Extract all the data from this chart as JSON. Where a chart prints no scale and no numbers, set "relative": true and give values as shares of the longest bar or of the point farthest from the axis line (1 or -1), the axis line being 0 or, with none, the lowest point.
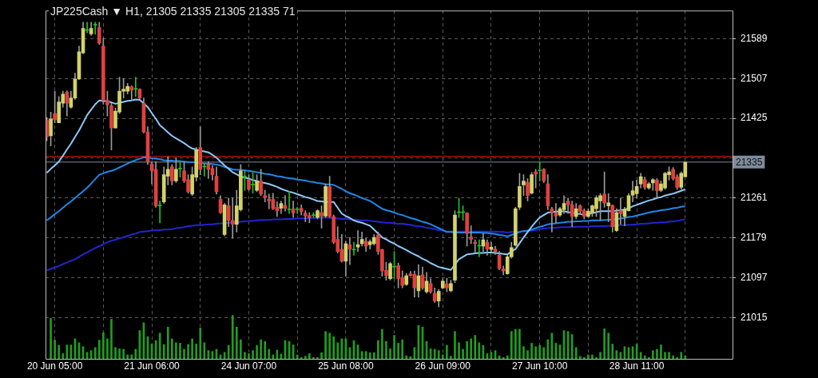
{
  "chart_data": [
    {
      "type": "candlestick",
      "title": "JP225Cash ▼ H1, 21305 21335 21305 21335 71",
      "categories": [
        null,
        null,
        "20 Jun 05:00",
        null,
        null,
        null,
        null,
        null,
        null,
        null,
        null,
        null,
        null,
        null,
        null,
        null,
        null,
        null,
        null,
        null,
        null,
        null,
        null,
        null,
        null,
        null,
        "21 Jun 06:00",
        null,
        null,
        null,
        null,
        null,
        null,
        null,
        null,
        null,
        null,
        null,
        null,
        null,
        null,
        null,
        null,
        null,
        null,
        null,
        null,
        null,
        null,
        null,
        "24 Jun 07:00",
        null,
        null,
        null,
        null,
        null,
        null,
        null,
        null,
        null,
        null,
        null,
        null,
        null,
        null,
        null,
        null,
        null,
        null,
        null,
        null,
        null,
        null,
        null,
        "25 Jun 08:00",
        null,
        null,
        null,
        null,
        null,
        null,
        null,
        null,
        null,
        null,
        null,
        null,
        null,
        null,
        null,
        null,
        null,
        null,
        null,
        null,
        null,
        null,
        null,
        "26 Jun 09:00",
        null,
        null,
        null,
        null,
        null,
        null,
        null,
        null,
        null,
        null,
        null,
        null,
        null,
        null,
        null,
        null,
        null,
        null,
        null,
        null,
        null,
        null,
        null,
        "27 Jun 10:00",
        null,
        null,
        null,
        null,
        null,
        null,
        null,
        null,
        null,
        null,
        null,
        null,
        null,
        null,
        null,
        null,
        null,
        null,
        null,
        null,
        null,
        null,
        null,
        "28 Jun 11:00",
        null,
        null,
        null,
        null,
        null,
        null,
        null,
        null,
        null,
        null,
        null,
        null
      ],
      "ohlc": [
        [
          21422,
          21427,
          21379,
          21387
        ],
        [
          21389,
          21438,
          21368,
          21424
        ],
        [
          21435,
          21481,
          21416,
          21422
        ],
        [
          21416,
          21470,
          21416,
          21459
        ],
        [
          21456,
          21481,
          21448,
          21475
        ],
        [
          21479,
          21482,
          21430,
          21456
        ],
        [
          21448,
          21481,
          21446,
          21467
        ],
        [
          21467,
          21518,
          21464,
          21506
        ],
        [
          21506,
          21574,
          21505,
          21562
        ],
        [
          21560,
          21623,
          21558,
          21610
        ],
        [
          21606,
          21623,
          21601,
          21606
        ],
        [
          21599,
          21623,
          21596,
          21610
        ],
        [
          21617,
          21623,
          21598,
          21617
        ],
        [
          21612,
          21623,
          21577,
          21580
        ],
        [
          21574,
          21590,
          21454,
          21462
        ],
        [
          21462,
          21481,
          21430,
          21453
        ],
        [
          21451,
          21456,
          21360,
          21405
        ],
        [
          21405,
          21446,
          21405,
          21440
        ],
        [
          21438,
          21510,
          21435,
          21481
        ],
        [
          21481,
          21507,
          21467,
          21485
        ],
        [
          21481,
          21497,
          21475,
          21491
        ],
        [
          21490,
          21492,
          21464,
          21483
        ],
        [
          21485,
          21510,
          21470,
          21485
        ],
        [
          21485,
          21486,
          21464,
          21467
        ],
        [
          21456,
          21467,
          21395,
          21397
        ],
        [
          21397,
          21408,
          21330,
          21336
        ],
        [
          21331,
          21336,
          21290,
          21317
        ],
        [
          21320,
          21336,
          21242,
          21245
        ],
        [
          21245,
          21255,
          21210,
          21245
        ],
        [
          21253,
          21325,
          21250,
          21309
        ],
        [
          21306,
          21346,
          21288,
          21320
        ],
        [
          21325,
          21330,
          21288,
          21296
        ],
        [
          21296,
          21344,
          21293,
          21320
        ],
        [
          21321,
          21336,
          21304,
          21321
        ],
        [
          21317,
          21336,
          21293,
          21296
        ],
        [
          21299,
          21309,
          21271,
          21274
        ],
        [
          21269,
          21325,
          21266,
          21309
        ],
        [
          21304,
          21365,
          21296,
          21360
        ],
        [
          21365,
          21408,
          21309,
          21320
        ],
        [
          21325,
          21333,
          21306,
          21325
        ],
        [
          21330,
          21336,
          21301,
          21320
        ],
        [
          21322,
          21328,
          21298,
          21309
        ],
        [
          21306,
          21325,
          21269,
          21274
        ],
        [
          21258,
          21266,
          21229,
          21231
        ],
        [
          21186,
          21250,
          21183,
          21247
        ],
        [
          21245,
          21261,
          21202,
          21215
        ],
        [
          21215,
          21261,
          21178,
          21207
        ],
        [
          21207,
          21277,
          21191,
          21245
        ],
        [
          21237,
          21330,
          21234,
          21317
        ],
        [
          21304,
          21317,
          21277,
          21304
        ],
        [
          21299,
          21309,
          21277,
          21279
        ],
        [
          21288,
          21314,
          21271,
          21288
        ],
        [
          21277,
          21309,
          21274,
          21296
        ],
        [
          21296,
          21320,
          21266,
          21269
        ],
        [
          21266,
          21277,
          21253,
          21262
        ],
        [
          21259,
          21269,
          21239,
          21255
        ],
        [
          21258,
          21271,
          21237,
          21239
        ],
        [
          21242,
          21253,
          21223,
          21235
        ],
        [
          21240,
          21255,
          21229,
          21250
        ],
        [
          21246,
          21266,
          21234,
          21240
        ],
        [
          21237,
          21274,
          21229,
          21237
        ],
        [
          21239,
          21255,
          21221,
          21230
        ],
        [
          21237,
          21242,
          21229,
          21237
        ],
        [
          21240,
          21247,
          21226,
          21233
        ],
        [
          21230,
          21235,
          21212,
          21224
        ],
        [
          21225,
          21231,
          21210,
          21221
        ],
        [
          21225,
          21231,
          21221,
          21225
        ],
        [
          21221,
          21237,
          21218,
          21235
        ],
        [
          21231,
          21245,
          21199,
          21224
        ],
        [
          21224,
          21290,
          21221,
          21285
        ],
        [
          21285,
          21306,
          21221,
          21223
        ],
        [
          21223,
          21226,
          21167,
          21170
        ],
        [
          21176,
          21202,
          21148,
          21151
        ],
        [
          21155,
          21186,
          21129,
          21131
        ],
        [
          21131,
          21172,
          21100,
          21167
        ],
        [
          21165,
          21180,
          21124,
          21156
        ],
        [
          21154,
          21170,
          21143,
          21154
        ],
        [
          21160,
          21194,
          21151,
          21165
        ],
        [
          21167,
          21191,
          21162,
          21176
        ],
        [
          21172,
          21178,
          21151,
          21162
        ],
        [
          21165,
          21175,
          21156,
          21171
        ],
        [
          21167,
          21186,
          21164,
          21180
        ],
        [
          21185,
          21191,
          21145,
          21151
        ],
        [
          21155,
          21156,
          21100,
          21111
        ],
        [
          21112,
          21129,
          21092,
          21101
        ],
        [
          21095,
          21129,
          21092,
          21126
        ],
        [
          21119,
          21151,
          21095,
          21119
        ],
        [
          21122,
          21127,
          21076,
          21095
        ],
        [
          21097,
          21111,
          21076,
          21081
        ],
        [
          21083,
          21106,
          21081,
          21101
        ],
        [
          21105,
          21110,
          21100,
          21101
        ],
        [
          21104,
          21111,
          21057,
          21076
        ],
        [
          21070,
          21124,
          21057,
          21101
        ],
        [
          21103,
          21119,
          21073,
          21076
        ],
        [
          21068,
          21108,
          21065,
          21090
        ],
        [
          21085,
          21095,
          21065,
          21068
        ],
        [
          21065,
          21076,
          21046,
          21049
        ],
        [
          21049,
          21073,
          21037,
          21069
        ],
        [
          21076,
          21095,
          21074,
          21090
        ],
        [
          21084,
          21096,
          21068,
          21076
        ],
        [
          21070,
          21092,
          21068,
          21085
        ],
        [
          21092,
          21235,
          21087,
          21226
        ],
        [
          21231,
          21261,
          21221,
          21231
        ],
        [
          21231,
          21245,
          21215,
          21231
        ],
        [
          21230,
          21231,
          21162,
          21188
        ],
        [
          21181,
          21204,
          21167,
          21176
        ],
        [
          21170,
          21175,
          21148,
          21167
        ],
        [
          21162,
          21175,
          21140,
          21162
        ],
        [
          21162,
          21188,
          21151,
          21175
        ],
        [
          21170,
          21175,
          21143,
          21156
        ],
        [
          21155,
          21170,
          21151,
          21160
        ],
        [
          21156,
          21162,
          21145,
          21151
        ],
        [
          21144,
          21151,
          21113,
          21116
        ],
        [
          21115,
          21121,
          21103,
          21111
        ],
        [
          21105,
          21143,
          21104,
          21140
        ],
        [
          21140,
          21170,
          21137,
          21159
        ],
        [
          21164,
          21242,
          21162,
          21239
        ],
        [
          21242,
          21312,
          21237,
          21285
        ],
        [
          21288,
          21309,
          21266,
          21296
        ],
        [
          21293,
          21301,
          21255,
          21266
        ],
        [
          21271,
          21314,
          21269,
          21309
        ],
        [
          21315,
          21320,
          21282,
          21310
        ],
        [
          21317,
          21336,
          21296,
          21317
        ],
        [
          21320,
          21322,
          21293,
          21296
        ],
        [
          21290,
          21309,
          21237,
          21245
        ],
        [
          21239,
          21242,
          21191,
          21231
        ],
        [
          21230,
          21250,
          21210,
          21224
        ],
        [
          21226,
          21242,
          21223,
          21239
        ],
        [
          21237,
          21266,
          21229,
          21250
        ],
        [
          21255,
          21261,
          21229,
          21247
        ],
        [
          21247,
          21255,
          21202,
          21223
        ],
        [
          21223,
          21250,
          21218,
          21239
        ],
        [
          21245,
          21247,
          21229,
          21234
        ],
        [
          21235,
          21239,
          21218,
          21223
        ],
        [
          21223,
          21239,
          21221,
          21234
        ],
        [
          21231,
          21247,
          21223,
          21245
        ],
        [
          21239,
          21266,
          21223,
          21262
        ],
        [
          21255,
          21270,
          21215,
          21266
        ],
        [
          21269,
          21315,
          21242,
          21251
        ],
        [
          21245,
          21270,
          21212,
          21251
        ],
        [
          21246,
          21247,
          21191,
          21202
        ],
        [
          21194,
          21239,
          21192,
          21231
        ],
        [
          21235,
          21261,
          21207,
          21229
        ],
        [
          21223,
          21242,
          21204,
          21238
        ],
        [
          21235,
          21270,
          21234,
          21266
        ],
        [
          21267,
          21296,
          21253,
          21276
        ],
        [
          21270,
          21298,
          21261,
          21285
        ],
        [
          21290,
          21312,
          21282,
          21305
        ],
        [
          21299,
          21304,
          21279,
          21283
        ],
        [
          21282,
          21293,
          21279,
          21290
        ],
        [
          21292,
          21301,
          21277,
          21299
        ],
        [
          21298,
          21301,
          21261,
          21276
        ],
        [
          21277,
          21296,
          21274,
          21290
        ],
        [
          21282,
          21314,
          21279,
          21312
        ],
        [
          21309,
          21325,
          21298,
          21315
        ],
        [
          21320,
          21324,
          21298,
          21301
        ],
        [
          21305,
          21309,
          21279,
          21283
        ],
        [
          21283,
          21315,
          21279,
          21312
        ],
        [
          21305,
          21335,
          21305,
          21335
        ]
      ],
      "series": [
        {
          "type": "line",
          "color": "#8ec8f8",
          "values": [
            21313,
            21321,
            21328,
            21336,
            21348,
            21361,
            21373,
            21387,
            21400,
            21416,
            21432,
            21443,
            21454,
            21462,
            21461,
            21460,
            21458,
            21455,
            21457,
            21459,
            21461,
            21462,
            21464,
            21463,
            21456,
            21448,
            21436,
            21424,
            21411,
            21404,
            21396,
            21389,
            21384,
            21379,
            21374,
            21368,
            21363,
            21361,
            21358,
            21357,
            21355,
            21350,
            21344,
            21336,
            21328,
            21321,
            21314,
            21310,
            21305,
            21303,
            21301,
            21298,
            21296,
            21293,
            21292,
            21290,
            21287,
            21284,
            21280,
            21277,
            21274,
            21272,
            21269,
            21266,
            21263,
            21261,
            21258,
            21255,
            21254,
            21253,
            21253,
            21253,
            21241,
            21229,
            21224,
            21220,
            21215,
            21212,
            21210,
            21207,
            21204,
            21196,
            21188,
            21180,
            21176,
            21171,
            21167,
            21162,
            21158,
            21154,
            21149,
            21145,
            21141,
            21136,
            21132,
            21127,
            21123,
            21119,
            21117,
            21115,
            21113,
            21124,
            21135,
            21140,
            21145,
            21146,
            21147,
            21148,
            21148,
            21149,
            21149,
            21148,
            21147,
            21146,
            21145,
            21151,
            21156,
            21168,
            21180,
            21191,
            21202,
            21212,
            21221,
            21226,
            21231,
            21232,
            21233,
            21233,
            21234,
            21232,
            21231,
            21229,
            21228,
            21226,
            21228,
            21230,
            21232,
            21234,
            21234,
            21234,
            21234,
            21235,
            21236,
            21237,
            21240,
            21244,
            21247,
            21250,
            21253,
            21256,
            21258,
            21261,
            21263,
            21266,
            21268,
            21270,
            21273,
            21276,
            21279
          ]
        },
        {
          "type": "line",
          "color": "#1e88e8",
          "values": [
            21215,
            21221,
            21228,
            21234,
            21241,
            21248,
            21254,
            21261,
            21268,
            21275,
            21282,
            21291,
            21300,
            21309,
            21312,
            21315,
            21317,
            21320,
            21324,
            21328,
            21332,
            21336,
            21339,
            21342,
            21345,
            21344,
            21343,
            21342,
            21341,
            21339,
            21338,
            21338,
            21337,
            21337,
            21336,
            21335,
            21335,
            21334,
            21333,
            21332,
            21332,
            21331,
            21330,
            21328,
            21325,
            21323,
            21320,
            21319,
            21319,
            21318,
            21317,
            21316,
            21314,
            21313,
            21311,
            21310,
            21308,
            21306,
            21305,
            21303,
            21302,
            21301,
            21299,
            21298,
            21297,
            21295,
            21294,
            21292,
            21291,
            21289,
            21289,
            21288,
            21284,
            21280,
            21275,
            21271,
            21268,
            21265,
            21261,
            21258,
            21255,
            21250,
            21244,
            21239,
            21236,
            21234,
            21231,
            21228,
            21226,
            21223,
            21220,
            21218,
            21215,
            21212,
            21210,
            21207,
            21203,
            21199,
            21195,
            21191,
            21191,
            21190,
            21190,
            21190,
            21190,
            21190,
            21190,
            21190,
            21189,
            21189,
            21188,
            21187,
            21185,
            21184,
            21182,
            21185,
            21188,
            21191,
            21193,
            21194,
            21196,
            21199,
            21202,
            21204,
            21207,
            21208,
            21209,
            21210,
            21211,
            21212,
            21212,
            21213,
            21213,
            21214,
            21214,
            21215,
            21215,
            21215,
            21216,
            21216,
            21217,
            21217,
            21219,
            21220,
            21222,
            21223,
            21225,
            21227,
            21229,
            21231,
            21233,
            21234,
            21236,
            21237,
            21238,
            21240,
            21241,
            21243,
            21244
          ]
        },
        {
          "type": "line",
          "color": "#2424d0",
          "values": [
            21112,
            21115,
            21118,
            21121,
            21125,
            21128,
            21132,
            21135,
            21140,
            21145,
            21149,
            21154,
            21158,
            21162,
            21166,
            21170,
            21173,
            21175,
            21178,
            21180,
            21183,
            21186,
            21188,
            21191,
            21192,
            21193,
            21194,
            21195,
            21195,
            21196,
            21196,
            21197,
            21199,
            21200,
            21201,
            21203,
            21204,
            21205,
            21205,
            21206,
            21207,
            21207,
            21208,
            21209,
            21209,
            21210,
            21211,
            21211,
            21212,
            21213,
            21214,
            21214,
            21215,
            21216,
            21216,
            21216,
            21217,
            21217,
            21217,
            21218,
            21218,
            21218,
            21219,
            21219,
            21219,
            21220,
            21220,
            21220,
            21221,
            21221,
            21220,
            21220,
            21219,
            21218,
            21218,
            21217,
            21216,
            21216,
            21215,
            21215,
            21214,
            21213,
            21212,
            21211,
            21210,
            21210,
            21209,
            21208,
            21208,
            21207,
            21206,
            21204,
            21203,
            21202,
            21200,
            21199,
            21197,
            21195,
            21194,
            21192,
            21192,
            21192,
            21192,
            21192,
            21192,
            21192,
            21192,
            21192,
            21192,
            21192,
            21192,
            21192,
            21191,
            21191,
            21190,
            21191,
            21191,
            21192,
            21193,
            21193,
            21194,
            21195,
            21197,
            21198,
            21199,
            21200,
            21200,
            21201,
            21201,
            21201,
            21201,
            21202,
            21202,
            21202,
            21202,
            21203,
            21203,
            21203,
            21203,
            21204,
            21204,
            21205,
            21205,
            21205,
            21206,
            21206,
            21207,
            21208,
            21208,
            21209,
            21210,
            21210,
            21211,
            21211,
            21212,
            21213,
            21214,
            21216,
            21217
          ]
        }
      ],
      "ylim": [
        20930,
        21647
      ],
      "yticks": [
        21015,
        21097,
        21179,
        21261,
        {
          "value": 21343,
          "label": null
        },
        21425,
        21507,
        21589
      ],
      "grid": true,
      "ref_lines": [
        {
          "axis": "y",
          "value": 21347,
          "color": "#d01010"
        },
        {
          "axis": "y",
          "value": 21335,
          "label": "21335",
          "color": "#7d8c9c"
        }
      ]
    },
    {
      "type": "bar",
      "relative": true,
      "color": "#1f9e1f",
      "tick_labels": false,
      "categories": [
        null,
        null,
        null,
        null,
        null,
        null,
        null,
        null,
        null,
        null,
        null,
        null,
        null,
        null,
        null,
        null,
        null,
        null,
        null,
        null,
        null,
        null,
        null,
        null,
        null,
        null,
        null,
        null,
        null,
        null,
        null,
        null,
        null,
        null,
        null,
        null,
        null,
        null,
        null,
        null,
        null,
        null,
        null,
        null,
        null,
        null,
        null,
        null,
        null,
        null,
        null,
        null,
        null,
        null,
        null,
        null,
        null,
        null,
        null,
        null,
        null,
        null,
        null,
        null,
        null,
        null,
        null,
        null,
        null,
        null,
        null,
        null,
        null,
        null,
        null,
        null,
        null,
        null,
        null,
        null,
        null,
        null,
        null,
        null,
        null,
        null,
        null,
        null,
        null,
        null,
        null,
        null,
        null,
        null,
        null,
        null,
        null,
        null,
        null,
        null,
        null,
        null,
        null,
        null,
        null,
        null,
        null,
        null,
        null,
        null,
        null,
        null,
        null,
        null,
        null,
        null,
        null,
        null,
        null,
        null,
        null,
        null,
        null,
        null,
        null,
        null,
        null,
        null,
        null,
        null,
        null,
        null,
        null,
        null,
        null,
        null,
        null,
        null,
        null,
        null,
        null,
        null,
        null,
        null,
        null,
        null,
        null,
        null,
        null,
        null,
        null,
        null,
        null,
        null,
        null,
        null,
        null,
        null
      ],
      "values": [
        0.93,
        0.43,
        0.31,
        0.12,
        0.32,
        0.32,
        0.46,
        0.37,
        0.28,
        0.15,
        0.19,
        0.26,
        0.43,
        0.6,
        0.46,
        0.91,
        0.26,
        0.23,
        0.22,
        0.09,
        0.09,
        0.22,
        0.65,
        0.83,
        0.51,
        0.34,
        0.42,
        0.59,
        0.33,
        0.73,
        0.46,
        0.37,
        0.36,
        0.22,
        0.33,
        0.46,
        0.34,
        0.71,
        0.37,
        0.19,
        0.17,
        0.22,
        0.09,
        0.15,
        0.31,
        1,
        0.73,
        0.44,
        0.15,
        0.12,
        0.19,
        0.31,
        0.44,
        0.4,
        0.22,
        0.09,
        0.2,
        0.11,
        0.42,
        0.4,
        0.32,
        0.09,
        0.03,
        0.06,
        0.12,
        0.03,
        0.03,
        0.14,
        0.63,
        0.59,
        0.51,
        0.37,
        0.46,
        0.46,
        0.26,
        0.42,
        0.32,
        0.17,
        0.17,
        0.14,
        0.14,
        0.42,
        0.68,
        0.4,
        0.23,
        0.54,
        0.36,
        0.44,
        0.07,
        0.05,
        0.26,
        0.77,
        0.73,
        0.4,
        0.23,
        0.22,
        0.19,
        0.09,
        0.31,
        0.06,
        0.63,
        0.37,
        0.22,
        0.4,
        0.46,
        0.54,
        0.37,
        0.31,
        0.12,
        0.15,
        0.19,
        0.07,
        0.03,
        0.07,
        0.63,
        0.68,
        0.68,
        0.28,
        0.19,
        0.36,
        0.28,
        0.31,
        0.26,
        0.44,
        0.59,
        0.36,
        0.32,
        0.65,
        0.63,
        0.56,
        0.26,
        0.06,
        0.03,
        0.09,
        0.09,
        0.03,
        0.15,
        0.69,
        0.59,
        0.34,
        0.19,
        0.15,
        0.28,
        0.26,
        0.28,
        0.34,
        0.15,
        0.07,
        0.03,
        0.19,
        0.22,
        0.32,
        0.15,
        0.15,
        0.07,
        0.03,
        0.15,
        0.07
      ]
    }
  ]
}
